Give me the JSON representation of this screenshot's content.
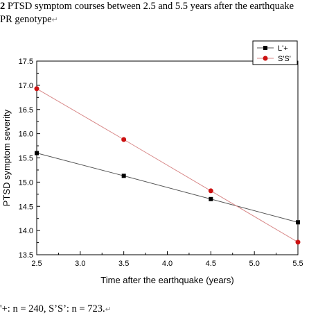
{
  "caption_top": {
    "line1_bold": "2",
    "line1_text": " PTSD symptom courses between 2.5 and 5.5 years after the earthquake",
    "line2_text": "PR genotype",
    "return_mark": "↵"
  },
  "caption_bottom": {
    "text": "'+: n = 240, S’S’: n = 723.",
    "return_mark": "↵"
  },
  "colors": {
    "series_1": "#000000",
    "series_1_line": "#555555",
    "series_2": "#cc1111",
    "series_2_line": "#d88888"
  },
  "chart_data": {
    "type": "line",
    "title": "",
    "xlabel": "Time after the earthquake (years)",
    "ylabel": "PTSD symptom severity",
    "xlim": [
      2.5,
      5.5
    ],
    "ylim": [
      13.5,
      17.5
    ],
    "xticks": [
      "2.5",
      "3.0",
      "3.5",
      "4.0",
      "4.5",
      "5.0",
      "5.5"
    ],
    "yticks": [
      "13.5",
      "14.0",
      "14.5",
      "15.0",
      "15.5",
      "16.0",
      "16.5",
      "17.0",
      "17.5"
    ],
    "grid": false,
    "legend_position": "top-right",
    "series": [
      {
        "name": "L'+",
        "marker": "square",
        "x": [
          2.5,
          3.5,
          4.5,
          5.5
        ],
        "values": [
          15.6,
          15.13,
          14.65,
          14.17
        ]
      },
      {
        "name": "S'S'",
        "marker": "circle",
        "x": [
          2.5,
          3.5,
          4.5,
          5.5
        ],
        "values": [
          16.93,
          15.88,
          14.82,
          13.76
        ]
      }
    ]
  }
}
